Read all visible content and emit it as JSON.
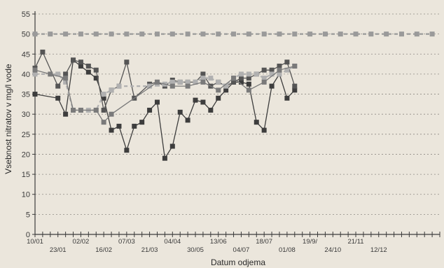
{
  "chart_data": {
    "type": "line",
    "title": "",
    "xlabel": "Datum odjema",
    "ylabel": "Vsebnost nitratov v mg/l vode",
    "ylim": [
      0,
      55
    ],
    "yticks": [
      0,
      5,
      10,
      15,
      20,
      25,
      30,
      35,
      40,
      45,
      50,
      55
    ],
    "xlim": [
      0,
      53
    ],
    "grid": true,
    "legend": "none",
    "x_tick_labels": [
      {
        "x": 0,
        "label": "10/01",
        "row": 1
      },
      {
        "x": 3,
        "label": "23/01",
        "row": 2
      },
      {
        "x": 6,
        "label": "02/02",
        "row": 1
      },
      {
        "x": 9,
        "label": "16/02",
        "row": 2
      },
      {
        "x": 12,
        "label": "07/03",
        "row": 1
      },
      {
        "x": 15,
        "label": "21/03",
        "row": 2
      },
      {
        "x": 18,
        "label": "04/04",
        "row": 1
      },
      {
        "x": 21,
        "label": "30/05",
        "row": 2
      },
      {
        "x": 24,
        "label": "13/06",
        "row": 1
      },
      {
        "x": 27,
        "label": "04/07",
        "row": 2
      },
      {
        "x": 30,
        "label": "18/07",
        "row": 1
      },
      {
        "x": 33,
        "label": "01/08",
        "row": 2
      },
      {
        "x": 36,
        "label": "19/9/",
        "row": 1
      },
      {
        "x": 39,
        "label": "24/10",
        "row": 2
      },
      {
        "x": 42,
        "label": "21/11",
        "row": 1
      },
      {
        "x": 45,
        "label": "12/12",
        "row": 2
      }
    ],
    "series": [
      {
        "color": "#9a9a9a",
        "marker": "square",
        "dashed": true,
        "points": [
          [
            0,
            50
          ],
          [
            2,
            50
          ],
          [
            4,
            50
          ],
          [
            6,
            50
          ],
          [
            8,
            50
          ],
          [
            10,
            50
          ],
          [
            12,
            50
          ],
          [
            14,
            50
          ],
          [
            16,
            50
          ],
          [
            18,
            50
          ],
          [
            20,
            50
          ],
          [
            22,
            50
          ],
          [
            24,
            50
          ],
          [
            26,
            50
          ],
          [
            28,
            50
          ],
          [
            30,
            50
          ],
          [
            32,
            50
          ],
          [
            34,
            50
          ],
          [
            36,
            50
          ],
          [
            38,
            50
          ],
          [
            40,
            50
          ],
          [
            42,
            50
          ],
          [
            44,
            50
          ],
          [
            46,
            50
          ],
          [
            48,
            50
          ],
          [
            50,
            50
          ],
          [
            52,
            50
          ]
        ]
      },
      {
        "color": "#3d3d3d",
        "marker": "square",
        "dashed": false,
        "points": [
          [
            0,
            35
          ],
          [
            3,
            34
          ],
          [
            4,
            30
          ],
          [
            5,
            43.5
          ],
          [
            6,
            42
          ],
          [
            7,
            40.5
          ],
          [
            8,
            39
          ],
          [
            9,
            34
          ],
          [
            10,
            26
          ],
          [
            11,
            27
          ],
          [
            12,
            21
          ],
          [
            13,
            27
          ],
          [
            14,
            28
          ],
          [
            15,
            31
          ],
          [
            16,
            33
          ],
          [
            17,
            19
          ],
          [
            18,
            22
          ],
          [
            19,
            30.5
          ],
          [
            20,
            28.5
          ],
          [
            21,
            33.5
          ],
          [
            22,
            33
          ],
          [
            23,
            31
          ],
          [
            24,
            34
          ],
          [
            25,
            36
          ],
          [
            26,
            38
          ],
          [
            27,
            38
          ],
          [
            28,
            37.5
          ],
          [
            29,
            28
          ],
          [
            30,
            26
          ],
          [
            31,
            37
          ],
          [
            32,
            40
          ],
          [
            33,
            34
          ],
          [
            34,
            36
          ]
        ]
      },
      {
        "color": "#555555",
        "marker": "square",
        "dashed": false,
        "points": [
          [
            0,
            41.5
          ],
          [
            1,
            45.5
          ],
          [
            3,
            37
          ],
          [
            4,
            40
          ],
          [
            5,
            43.5
          ],
          [
            6,
            43
          ],
          [
            7,
            42
          ],
          [
            8,
            41
          ],
          [
            9,
            31
          ],
          [
            10,
            36
          ],
          [
            11,
            37
          ],
          [
            12,
            43
          ],
          [
            13,
            34
          ],
          [
            15,
            37.5
          ],
          [
            16,
            38
          ],
          [
            17,
            37
          ],
          [
            18,
            38.5
          ],
          [
            19,
            38
          ],
          [
            20,
            38
          ],
          [
            21,
            38
          ],
          [
            22,
            40
          ],
          [
            23,
            37
          ],
          [
            24,
            38
          ],
          [
            25,
            37
          ],
          [
            26,
            38
          ],
          [
            27,
            39
          ],
          [
            28,
            39
          ],
          [
            29,
            40
          ],
          [
            30,
            41
          ],
          [
            31,
            41
          ],
          [
            32,
            42
          ],
          [
            33,
            43
          ],
          [
            34,
            37
          ]
        ]
      },
      {
        "color": "#b0b0b0",
        "marker": "square",
        "dashed": true,
        "points": [
          [
            0,
            40
          ],
          [
            3,
            40
          ],
          [
            4,
            38
          ],
          [
            5,
            31
          ],
          [
            6,
            31
          ],
          [
            7,
            31
          ],
          [
            8,
            31
          ],
          [
            9,
            35
          ],
          [
            10,
            36
          ],
          [
            11,
            37
          ],
          [
            15,
            37
          ],
          [
            16,
            37.5
          ],
          [
            17,
            37.5
          ],
          [
            18,
            38
          ],
          [
            19,
            38
          ],
          [
            20,
            38
          ],
          [
            21,
            38
          ],
          [
            22,
            39
          ],
          [
            23,
            39
          ],
          [
            24,
            38
          ],
          [
            25,
            37
          ],
          [
            26,
            39
          ],
          [
            27,
            40
          ],
          [
            28,
            40
          ],
          [
            29,
            40
          ],
          [
            30,
            39
          ],
          [
            31,
            40
          ],
          [
            32,
            40
          ],
          [
            33,
            41
          ],
          [
            34,
            42
          ]
        ]
      },
      {
        "color": "#7a7a7a",
        "marker": "square",
        "dashed": false,
        "points": [
          [
            0,
            41
          ],
          [
            2,
            40
          ],
          [
            4,
            39
          ],
          [
            5,
            31
          ],
          [
            6,
            31
          ],
          [
            8,
            31
          ],
          [
            9,
            28
          ],
          [
            10,
            30
          ],
          [
            16,
            38
          ],
          [
            18,
            37
          ],
          [
            20,
            37
          ],
          [
            22,
            38
          ],
          [
            24,
            36
          ],
          [
            26,
            39
          ],
          [
            28,
            36
          ],
          [
            30,
            38
          ],
          [
            32,
            41
          ],
          [
            34,
            42
          ]
        ]
      }
    ]
  }
}
